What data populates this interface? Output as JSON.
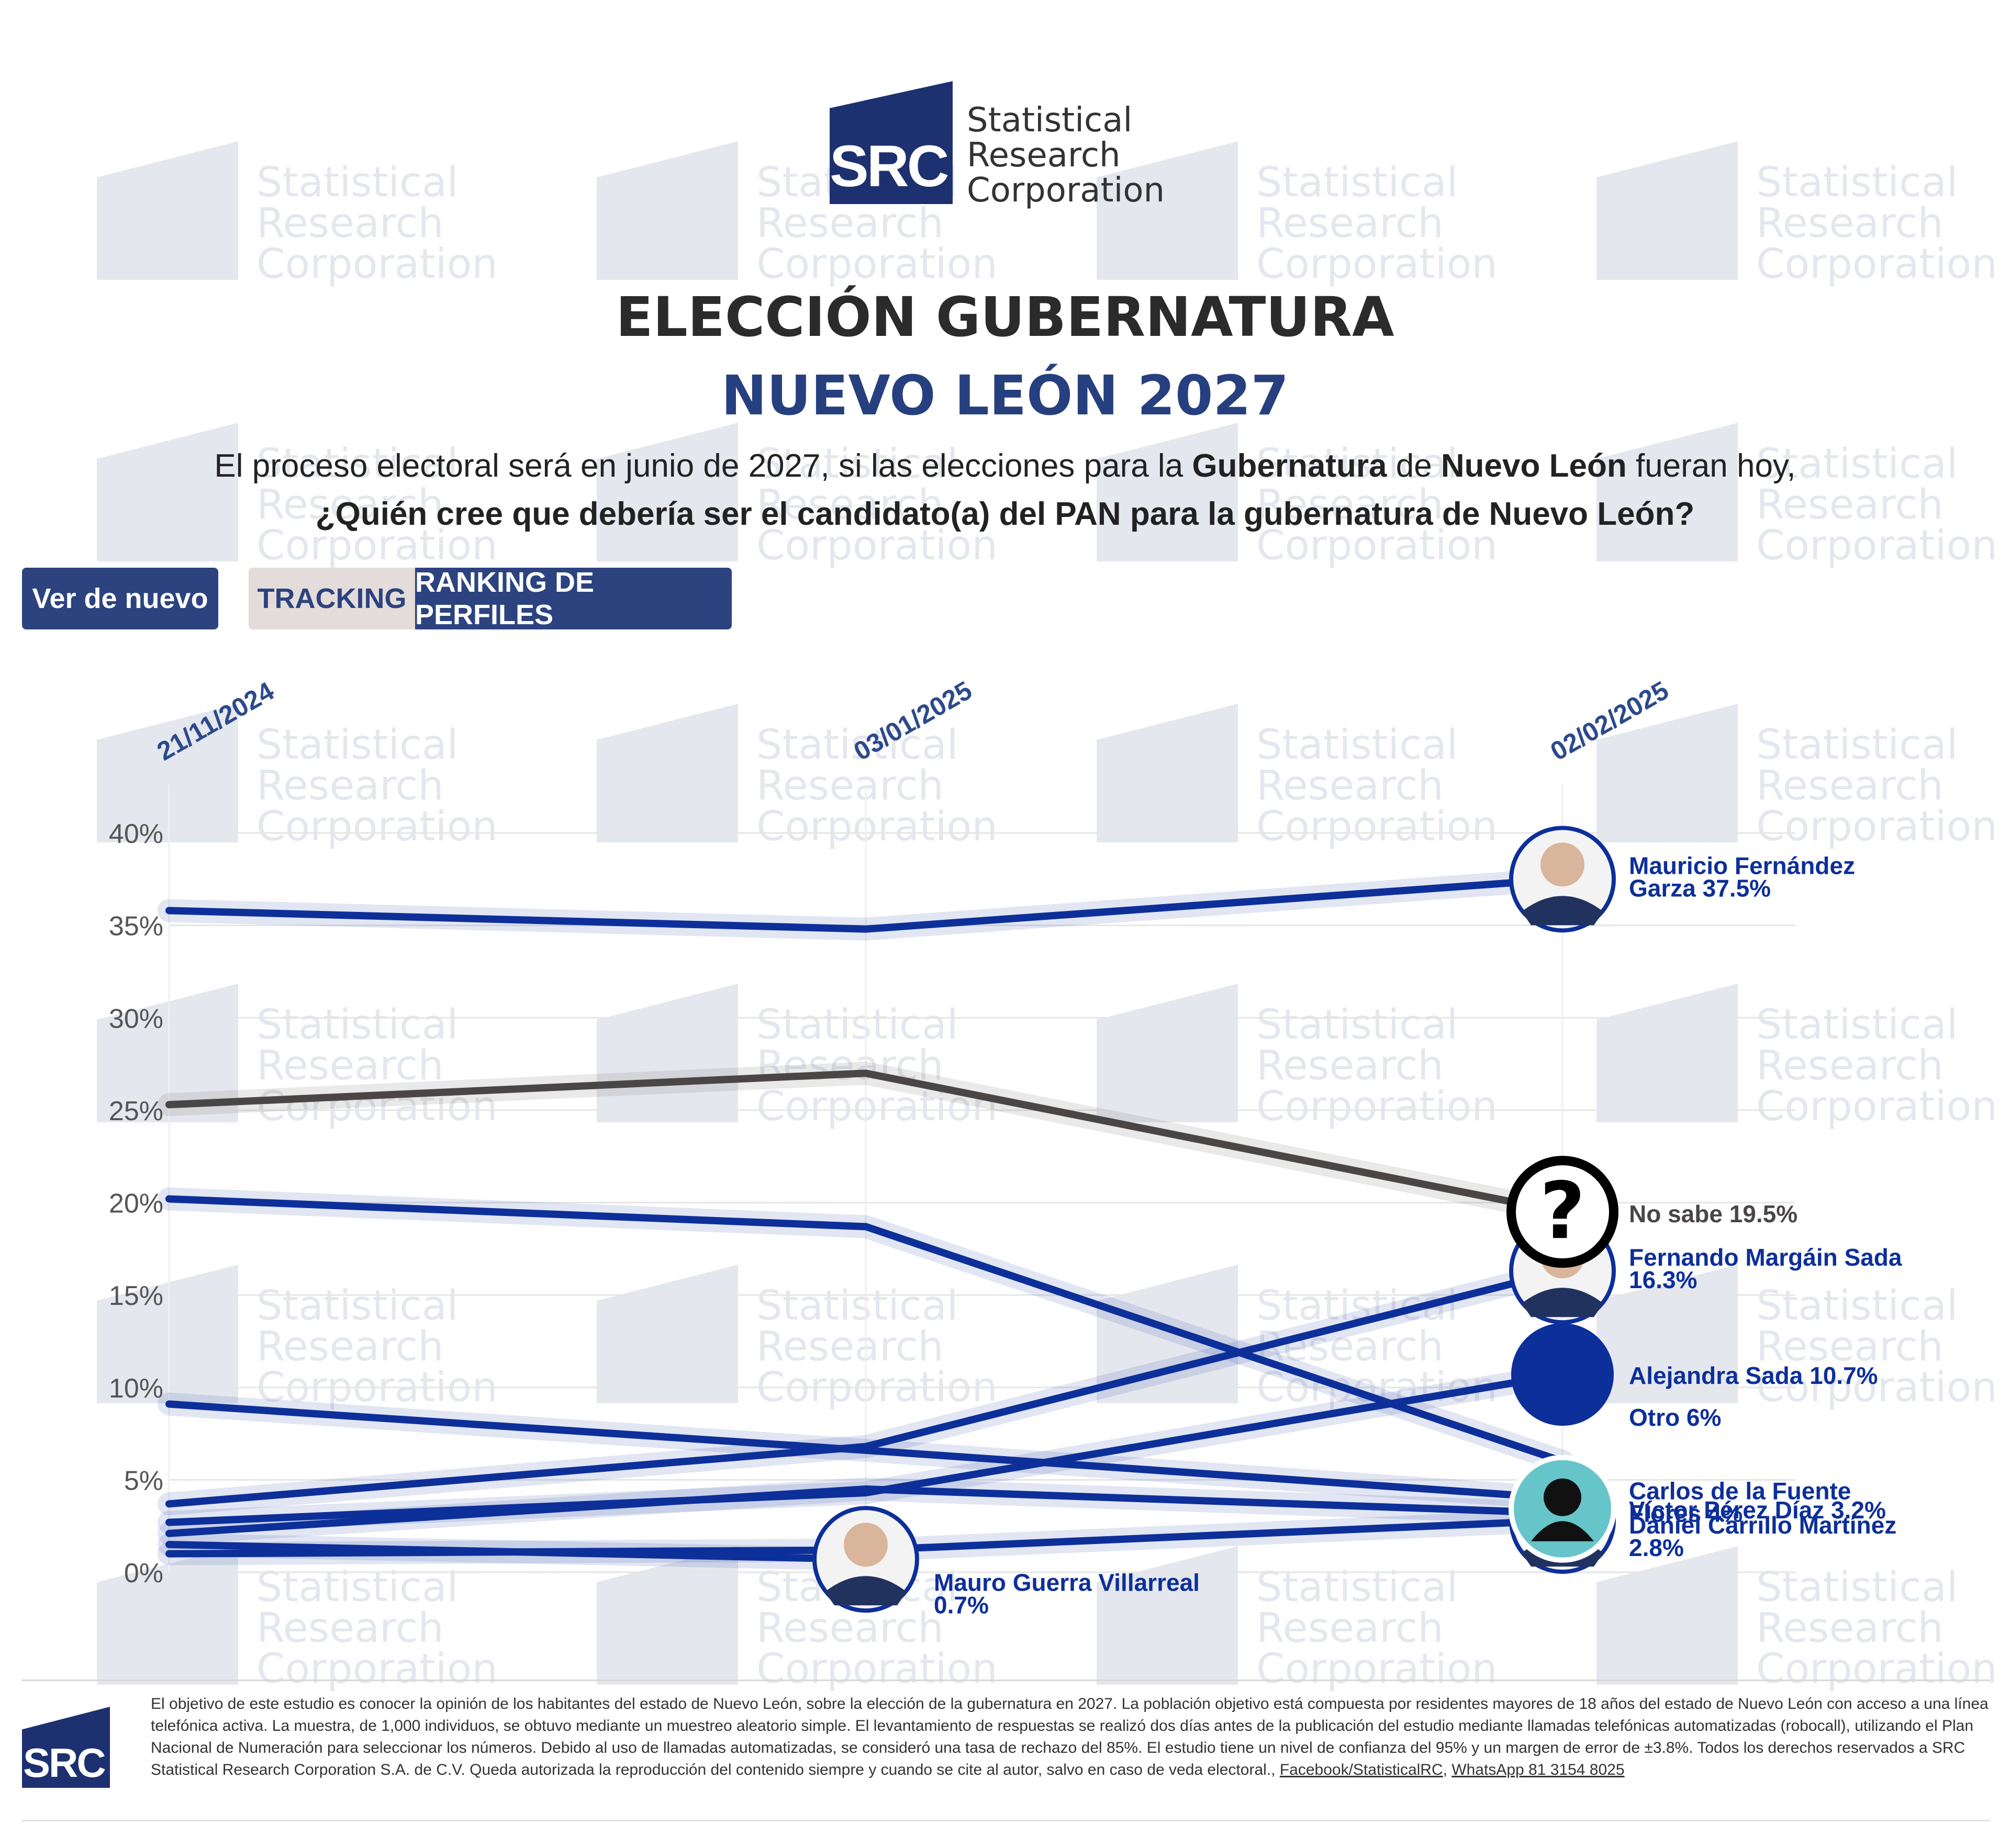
{
  "watermark": {
    "abbr": "SRC",
    "line1": "Statistical",
    "line2": "Research",
    "line3": "Corporation"
  },
  "logo": {
    "abbr": "SRC",
    "line1": "Statistical",
    "line2": "Research",
    "line3": "Corporation"
  },
  "header": {
    "title": "ELECCIÓN GUBERNATURA",
    "subtitle": "NUEVO LEÓN 2027",
    "question_p1": "El proceso electoral será en junio de 2027, si las elecciones para la ",
    "question_b1": "Gubernatura",
    "question_p2": " de ",
    "question_b2": "Nuevo León",
    "question_p3": " fueran hoy,",
    "question_line2": "¿Quién cree que debería ser el candidato(a) del PAN para la gubernatura de Nuevo León?"
  },
  "buttons": {
    "replay": "Ver de nuevo",
    "tracking": "TRACKING",
    "ranking": "RANKING DE PERFILES"
  },
  "colors": {
    "primary": "#0d2f99",
    "dark_line": "#4b4646",
    "navy_button": "#2c4380",
    "tracking_button": "#e4dcda",
    "teal_avatar": "#66c5c9"
  },
  "chart_data": {
    "type": "line",
    "x": [
      "21/11/2024",
      "03/01/2025",
      "02/02/2025"
    ],
    "ylim": [
      0,
      40
    ],
    "yticks": [
      "0%",
      "5%",
      "10%",
      "15%",
      "20%",
      "25%",
      "30%",
      "35%",
      "40%"
    ],
    "grid": true,
    "series": [
      {
        "name": "Mauricio Fernández Garza",
        "values": [
          35.8,
          34.8,
          37.5
        ],
        "label": "Mauricio Fernández",
        "label2": "Garza 37.5%",
        "color": "#0d2f99",
        "avatar": "person-photo"
      },
      {
        "name": "No sabe",
        "values": [
          25.3,
          27.0,
          19.5
        ],
        "label": "No sabe 19.5%",
        "color": "#4b4646",
        "avatar": "question-mark"
      },
      {
        "name": "Fernando Margáin Sada",
        "values": [
          3.7,
          6.8,
          16.3
        ],
        "label": "Fernando Margáin Sada",
        "label2": "16.3%",
        "color": "#0d2f99",
        "avatar": "person-photo"
      },
      {
        "name": "Alejandra Sada",
        "values": [
          2.7,
          4.3,
          10.7
        ],
        "label": "Alejandra Sada 10.7%",
        "color": "#0d2f99",
        "avatar": "blue-circle"
      },
      {
        "name": "Otro",
        "values": [
          20.2,
          18.7,
          6.0
        ],
        "label": "Otro 6%",
        "color": "#0d2f99",
        "avatar": "none"
      },
      {
        "name": "Carlos de la Fuente Flores",
        "values": [
          9.1,
          6.6,
          4.0
        ],
        "label": "Carlos de la Fuente",
        "label2": "Flores 4%",
        "color": "#0d2f99",
        "avatar": "generic-person"
      },
      {
        "name": "Víctor Pérez Díaz",
        "values": [
          2.1,
          4.5,
          3.2
        ],
        "label": "Víctor Pérez Díaz 3.2%",
        "color": "#0d2f99",
        "avatar": "none"
      },
      {
        "name": "Daniel Carrillo Martínez",
        "values": [
          1.0,
          1.2,
          2.8
        ],
        "label": "Daniel Carrillo Martínez",
        "label2": "2.8%",
        "color": "#0d2f99",
        "avatar": "person-photo"
      },
      {
        "name": "Mauro Guerra Villarreal",
        "values": [
          1.5,
          0.7,
          null
        ],
        "label": "Mauro Guerra Villarreal",
        "label2": "0.7%",
        "color": "#0d2f99",
        "avatar": "person-photo"
      }
    ]
  },
  "footer": {
    "abbr": "SRC",
    "text": "El objetivo de este estudio es conocer la opinión de los habitantes del estado de Nuevo León, sobre la elección de la gubernatura en 2027. La población objetivo está compuesta por residentes mayores de 18 años del estado de Nuevo León con acceso a una línea telefónica activa. La muestra, de 1,000 individuos, se obtuvo mediante un muestreo aleatorio simple. El levantamiento de respuestas se realizó dos días antes de la publicación del estudio mediante llamadas telefónicas automatizadas (robocall), utilizando el Plan Nacional de Numeración para seleccionar los números. Debido al uso de llamadas automatizadas, se consideró una tasa de rechazo del 85%. El estudio tiene un nivel de confianza del 95% y un margen de error de ±3.8%. Todos los derechos reservados a SRC Statistical Research Corporation S.A. de C.V. Queda autorizada la reproducción del contenido siempre y cuando se cite al autor, salvo en caso de veda electoral.,",
    "link_facebook": "Facebook/StatisticalRC",
    "link_sep": ", ",
    "link_whatsapp": "WhatsApp 81 3154 8025"
  }
}
